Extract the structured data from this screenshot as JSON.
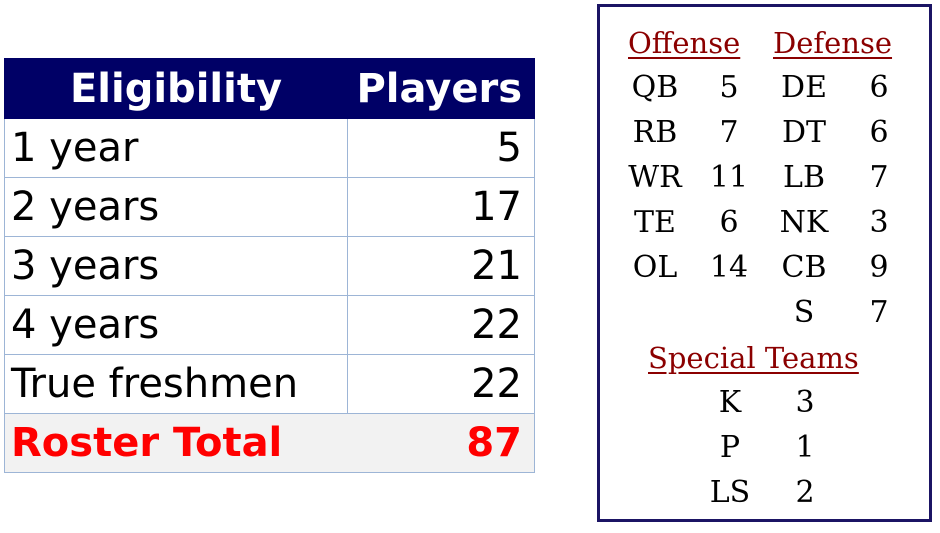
{
  "eligibility_table": {
    "headers": [
      "Eligibility",
      "Players"
    ],
    "rows": [
      {
        "label": "1 year",
        "value": "5"
      },
      {
        "label": "2 years",
        "value": "17"
      },
      {
        "label": "3 years",
        "value": "21"
      },
      {
        "label": "4 years",
        "value": "22"
      },
      {
        "label": "True freshmen",
        "value": "22"
      }
    ],
    "total": {
      "label": "Roster Total",
      "value": "87"
    },
    "colors": {
      "header_bg": "#000066",
      "header_text": "#ffffff",
      "total_text": "#ff0000",
      "total_bg": "#f2f2f2"
    }
  },
  "positions": {
    "offense": {
      "title": "Offense",
      "rows": [
        {
          "pos": "QB",
          "count": "5"
        },
        {
          "pos": "RB",
          "count": "7"
        },
        {
          "pos": "WR",
          "count": "11"
        },
        {
          "pos": "TE",
          "count": "6"
        },
        {
          "pos": "OL",
          "count": "14"
        }
      ]
    },
    "defense": {
      "title": "Defense",
      "rows": [
        {
          "pos": "DE",
          "count": "6"
        },
        {
          "pos": "DT",
          "count": "6"
        },
        {
          "pos": "LB",
          "count": "7"
        },
        {
          "pos": "NK",
          "count": "3"
        },
        {
          "pos": "CB",
          "count": "9"
        },
        {
          "pos": "S",
          "count": "7"
        }
      ]
    },
    "special_teams": {
      "title": "Special Teams",
      "rows": [
        {
          "pos": "K",
          "count": "3"
        },
        {
          "pos": "P",
          "count": "1"
        },
        {
          "pos": "LS",
          "count": "2"
        }
      ]
    },
    "colors": {
      "heading": "#8b0000",
      "border": "#1b1464"
    }
  }
}
